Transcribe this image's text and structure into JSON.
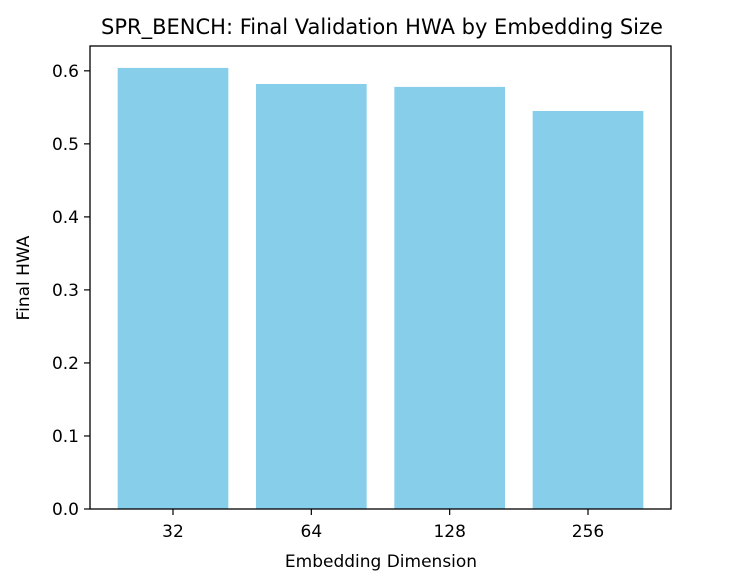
{
  "chart_data": {
    "type": "bar",
    "title": "SPR_BENCH: Final Validation HWA by Embedding Size",
    "xlabel": "Embedding Dimension",
    "ylabel": "Final HWA",
    "categories": [
      "32",
      "64",
      "128",
      "256"
    ],
    "values": [
      0.604,
      0.582,
      0.578,
      0.545
    ],
    "ylim": [
      0,
      0.634
    ],
    "yticks": [
      "0.0",
      "0.1",
      "0.2",
      "0.3",
      "0.4",
      "0.5",
      "0.6"
    ],
    "bar_color": "#87ceeb",
    "grid": false,
    "legend": "none"
  }
}
